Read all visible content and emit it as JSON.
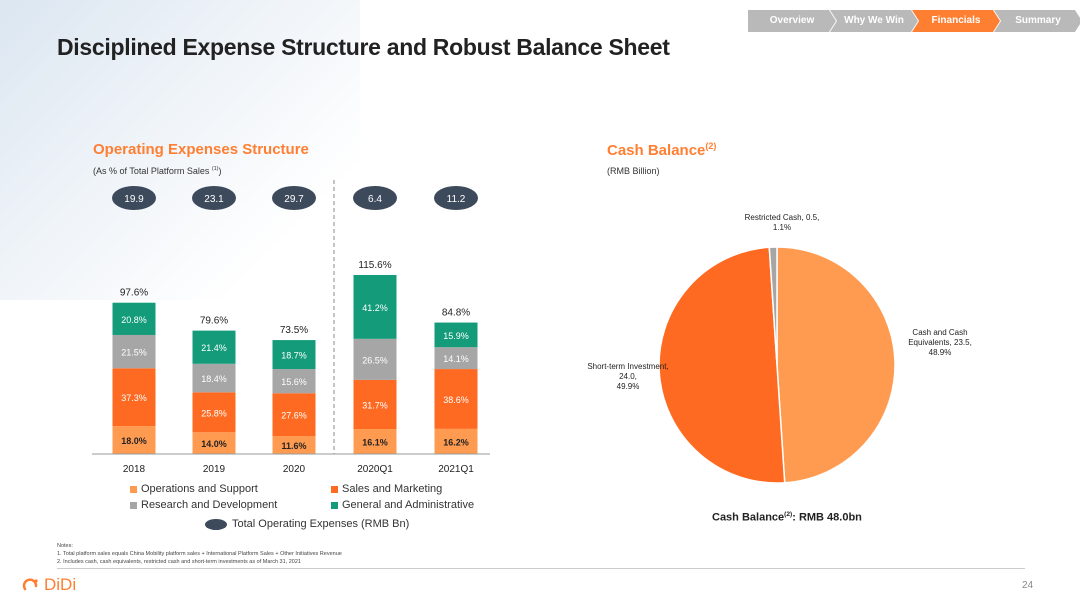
{
  "title": "Disciplined Expense Structure and Robust Balance Sheet",
  "nav": {
    "tabs": [
      {
        "label": "Overview",
        "active": false
      },
      {
        "label": "Why We Win",
        "active": false
      },
      {
        "label": "Financials",
        "active": true
      },
      {
        "label": "Summary",
        "active": false
      }
    ]
  },
  "opex": {
    "title": "Operating Expenses Structure",
    "subtitle": "(As % of Total Platform Sales ",
    "subtitle_sup": "(1)",
    "subtitle_end": ")"
  },
  "cash": {
    "title": "Cash Balance",
    "title_sup": "(2)",
    "subtitle": "(RMB Billion)",
    "total_label": "Cash Balance",
    "total_sup": "(2)",
    "total_value": ": RMB 48.0bn"
  },
  "colors": {
    "ops": "#ff9b50",
    "sales": "#ff6a22",
    "rnd": "#a6a6a6",
    "ga": "#139b7a",
    "oval": "#3d4a5c",
    "restricted": "#a6a6a6",
    "accent": "#ff7f32"
  },
  "chart_data": [
    {
      "type": "bar",
      "stacked": true,
      "title": "Operating Expenses Structure",
      "ylabel": "% of Total Platform Sales",
      "categories": [
        "2018",
        "2019",
        "2020",
        "2020Q1",
        "2021Q1"
      ],
      "series": [
        {
          "name": "Operations and Support",
          "key": "ops",
          "values": [
            18.0,
            14.0,
            11.6,
            16.1,
            16.2
          ],
          "labels": [
            "18.0%",
            "14.0%",
            "11.6%",
            "16.1%",
            "16.2%"
          ]
        },
        {
          "name": "Sales and Marketing",
          "key": "sales",
          "values": [
            37.3,
            25.8,
            27.6,
            31.7,
            38.6
          ],
          "labels": [
            "37.3%",
            "25.8%",
            "27.6%",
            "31.7%",
            "38.6%"
          ]
        },
        {
          "name": "Research and Development",
          "key": "rnd",
          "values": [
            21.5,
            18.4,
            15.6,
            26.5,
            14.1
          ],
          "labels": [
            "21.5%",
            "18.4%",
            "15.6%",
            "26.5%",
            "14.1%"
          ]
        },
        {
          "name": "General and Administrative",
          "key": "ga",
          "values": [
            20.8,
            21.4,
            18.7,
            41.2,
            15.9
          ],
          "labels": [
            "20.8%",
            "21.4%",
            "18.7%",
            "41.2%",
            "15.9%"
          ]
        }
      ],
      "totals": [
        "97.6%",
        "79.6%",
        "73.5%",
        "115.6%",
        "84.8%"
      ],
      "total_values": [
        97.6,
        79.6,
        73.5,
        115.6,
        84.8
      ],
      "opex_rmb_bn": [
        "19.9",
        "23.1",
        "29.7",
        "6.4",
        "11.2"
      ],
      "opex_legend": "Total Operating Expenses (RMB Bn)",
      "legend": [
        {
          "label": "Operations and Support",
          "key": "ops"
        },
        {
          "label": "Sales and Marketing",
          "key": "sales"
        },
        {
          "label": "Research and Development",
          "key": "rnd"
        },
        {
          "label": "General and Administrative",
          "key": "ga"
        }
      ]
    },
    {
      "type": "pie",
      "title": "Cash Balance",
      "unit": "RMB Billion",
      "slices": [
        {
          "name": "Cash and Cash Equivalents",
          "value": 23.5,
          "percent": 48.9,
          "key": "ops",
          "label_lines": [
            "Cash and Cash",
            "Equivalents, 23.5,",
            "48.9%"
          ]
        },
        {
          "name": "Short-term Investment",
          "value": 24.0,
          "percent": 49.9,
          "key": "sales",
          "label_lines": [
            "Short-term Investment,",
            "24.0,",
            "49.9%"
          ]
        },
        {
          "name": "Restricted Cash",
          "value": 0.5,
          "percent": 1.1,
          "key": "restricted",
          "label_lines": [
            "Restricted Cash, 0.5,",
            "1.1%"
          ]
        }
      ]
    }
  ],
  "notes": {
    "heading": "Notes:",
    "lines": [
      "1.  Total platform sales equals China Mobility platform sales + International Platform Sales + Other Initiatives Revenue",
      "2.  Includes cash, cash equivalents, restricted cash and short-term investments as of March 31, 2021"
    ]
  },
  "footer": {
    "logo_text": "DiDi",
    "page_number": "24"
  }
}
